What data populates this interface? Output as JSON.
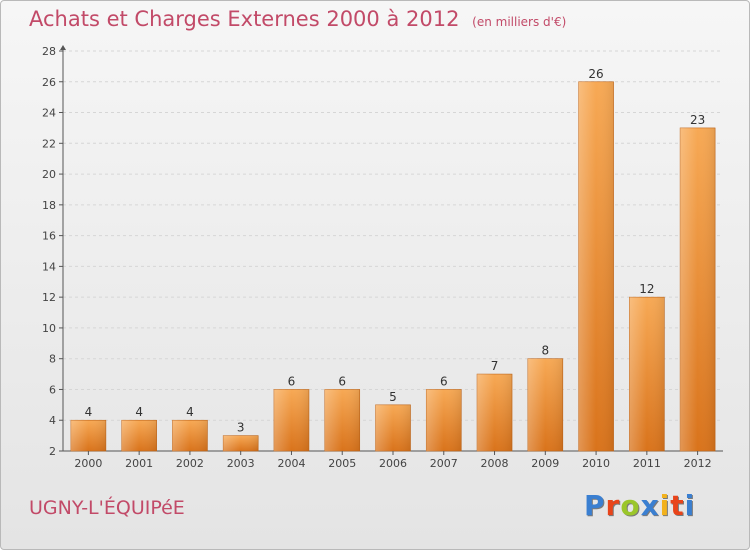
{
  "title": "Achats et Charges Externes 2000 à 2012",
  "subtitle": "(en milliers d'€)",
  "commune": "UGNY-L'ÉQUIPéE",
  "brand": {
    "text": "Proxiti",
    "letters": [
      {
        "ch": "P",
        "color": "#3a7fd1"
      },
      {
        "ch": "r",
        "color": "#e8441a"
      },
      {
        "ch": "o",
        "color": "#9bc62a"
      },
      {
        "ch": "x",
        "color": "#3a7fd1"
      },
      {
        "ch": "i",
        "color": "#f3b21c"
      },
      {
        "ch": "t",
        "color": "#e8441a"
      },
      {
        "ch": "i",
        "color": "#3a7fd1"
      }
    ]
  },
  "colors": {
    "bar_top": "#f7a955",
    "bar_bottom": "#d9731b",
    "bar_edge": "#c0661a",
    "title": "#c24a68",
    "grid": "#d6d6d6",
    "axis": "#555555"
  },
  "chart_data": {
    "type": "bar",
    "categories": [
      "2000",
      "2001",
      "2002",
      "2003",
      "2004",
      "2005",
      "2006",
      "2007",
      "2008",
      "2009",
      "2010",
      "2011",
      "2012"
    ],
    "values": [
      4,
      4,
      4,
      3,
      6,
      6,
      5,
      6,
      7,
      8,
      26,
      12,
      23
    ],
    "ylim": [
      2,
      28
    ],
    "yticks": [
      2,
      4,
      6,
      8,
      10,
      12,
      14,
      16,
      18,
      20,
      22,
      24,
      26,
      28
    ],
    "grid": true,
    "xlabel": "",
    "ylabel": ""
  }
}
